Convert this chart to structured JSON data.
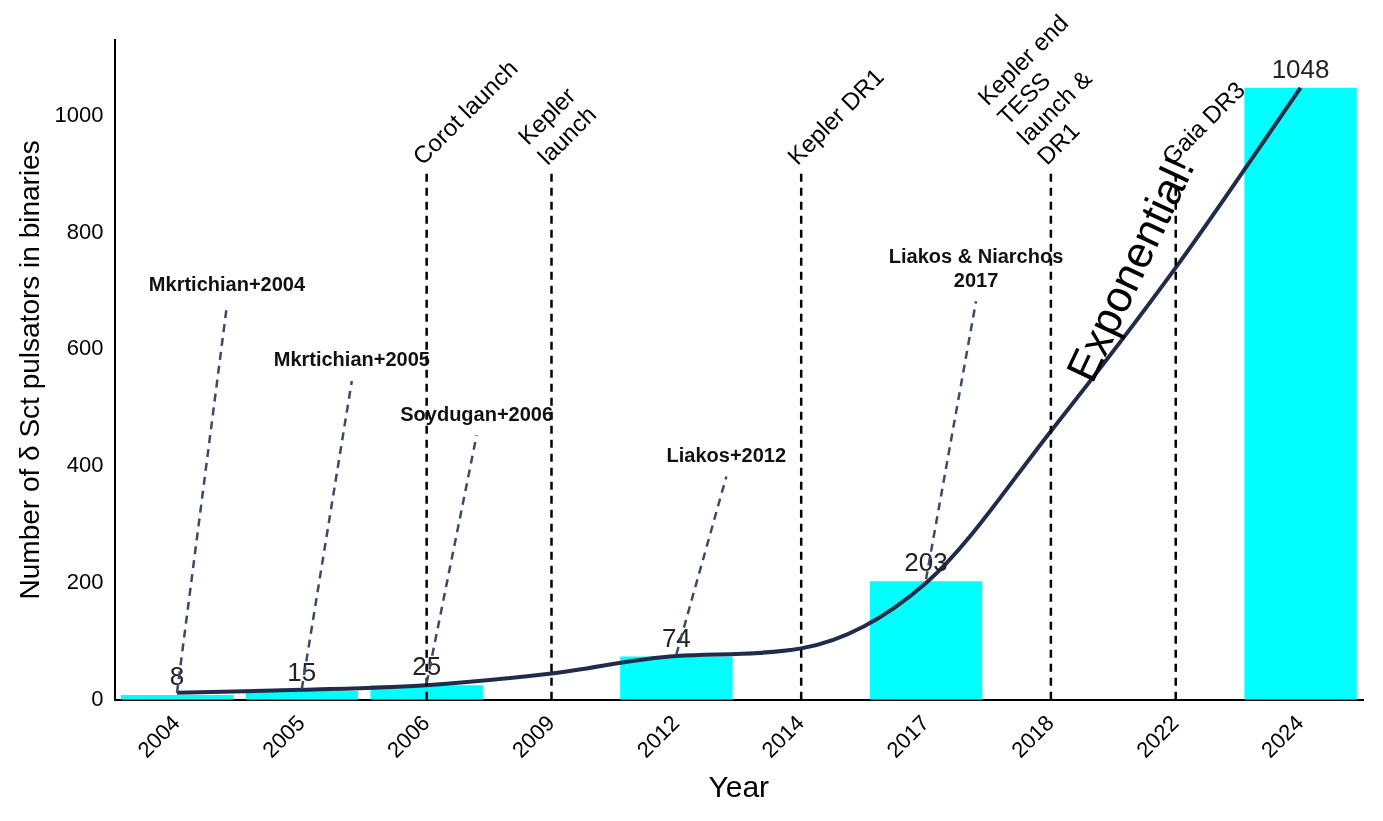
{
  "chart_data": {
    "type": "bar",
    "xlabel": "Year",
    "ylabel": "Number of δ Sct pulsators in binaries",
    "categories": [
      "2004",
      "2005",
      "2006",
      "2009",
      "2012",
      "2014",
      "2017",
      "2018",
      "2022",
      "2024"
    ],
    "ylim": [
      0,
      1130
    ],
    "yticks": [
      0,
      200,
      400,
      600,
      800,
      1000
    ],
    "series": [
      {
        "type": "bar",
        "color": "#00ffff",
        "values": [
          8,
          15,
          25,
          null,
          74,
          null,
          203,
          null,
          null,
          1048
        ],
        "value_labels": [
          "8",
          "15",
          "25",
          null,
          "74",
          null,
          "203",
          null,
          null,
          "1048"
        ]
      },
      {
        "type": "line",
        "color": "#1f2d4a",
        "values": [
          12,
          17,
          25,
          45,
          75,
          88,
          200,
          460,
          740,
          1048
        ]
      }
    ],
    "legend": false,
    "grid": false,
    "marker": "none",
    "ref_lines": [
      {
        "axis": "x",
        "value": "2006",
        "label": "Corot launch",
        "line_style": "dashed"
      },
      {
        "axis": "x",
        "value": "2009",
        "label": "Kepler launch",
        "line_style": "dashed"
      },
      {
        "axis": "x",
        "value": "2014",
        "label": "Kepler DR1",
        "line_style": "dashed"
      },
      {
        "axis": "x",
        "value": "2018",
        "label": "Kepler end TESS launch & DR1",
        "line_style": "dashed"
      },
      {
        "axis": "x",
        "value": "2022",
        "label": "Gaia DR3",
        "line_style": "dashed"
      }
    ],
    "annotations": [
      {
        "text": "Mkrtichian+2004",
        "x": "2004",
        "y": 8
      },
      {
        "text": "Mkrtichian+2005",
        "x": "2005",
        "y": 15
      },
      {
        "text": "Soydugan+2006",
        "x": "2006",
        "y": 25
      },
      {
        "text": "Liakos+2012",
        "x": "2012",
        "y": 74
      },
      {
        "text": "Liakos & Niarchos 2017",
        "x": "2017",
        "y": 203
      },
      "Exponential!"
    ]
  }
}
